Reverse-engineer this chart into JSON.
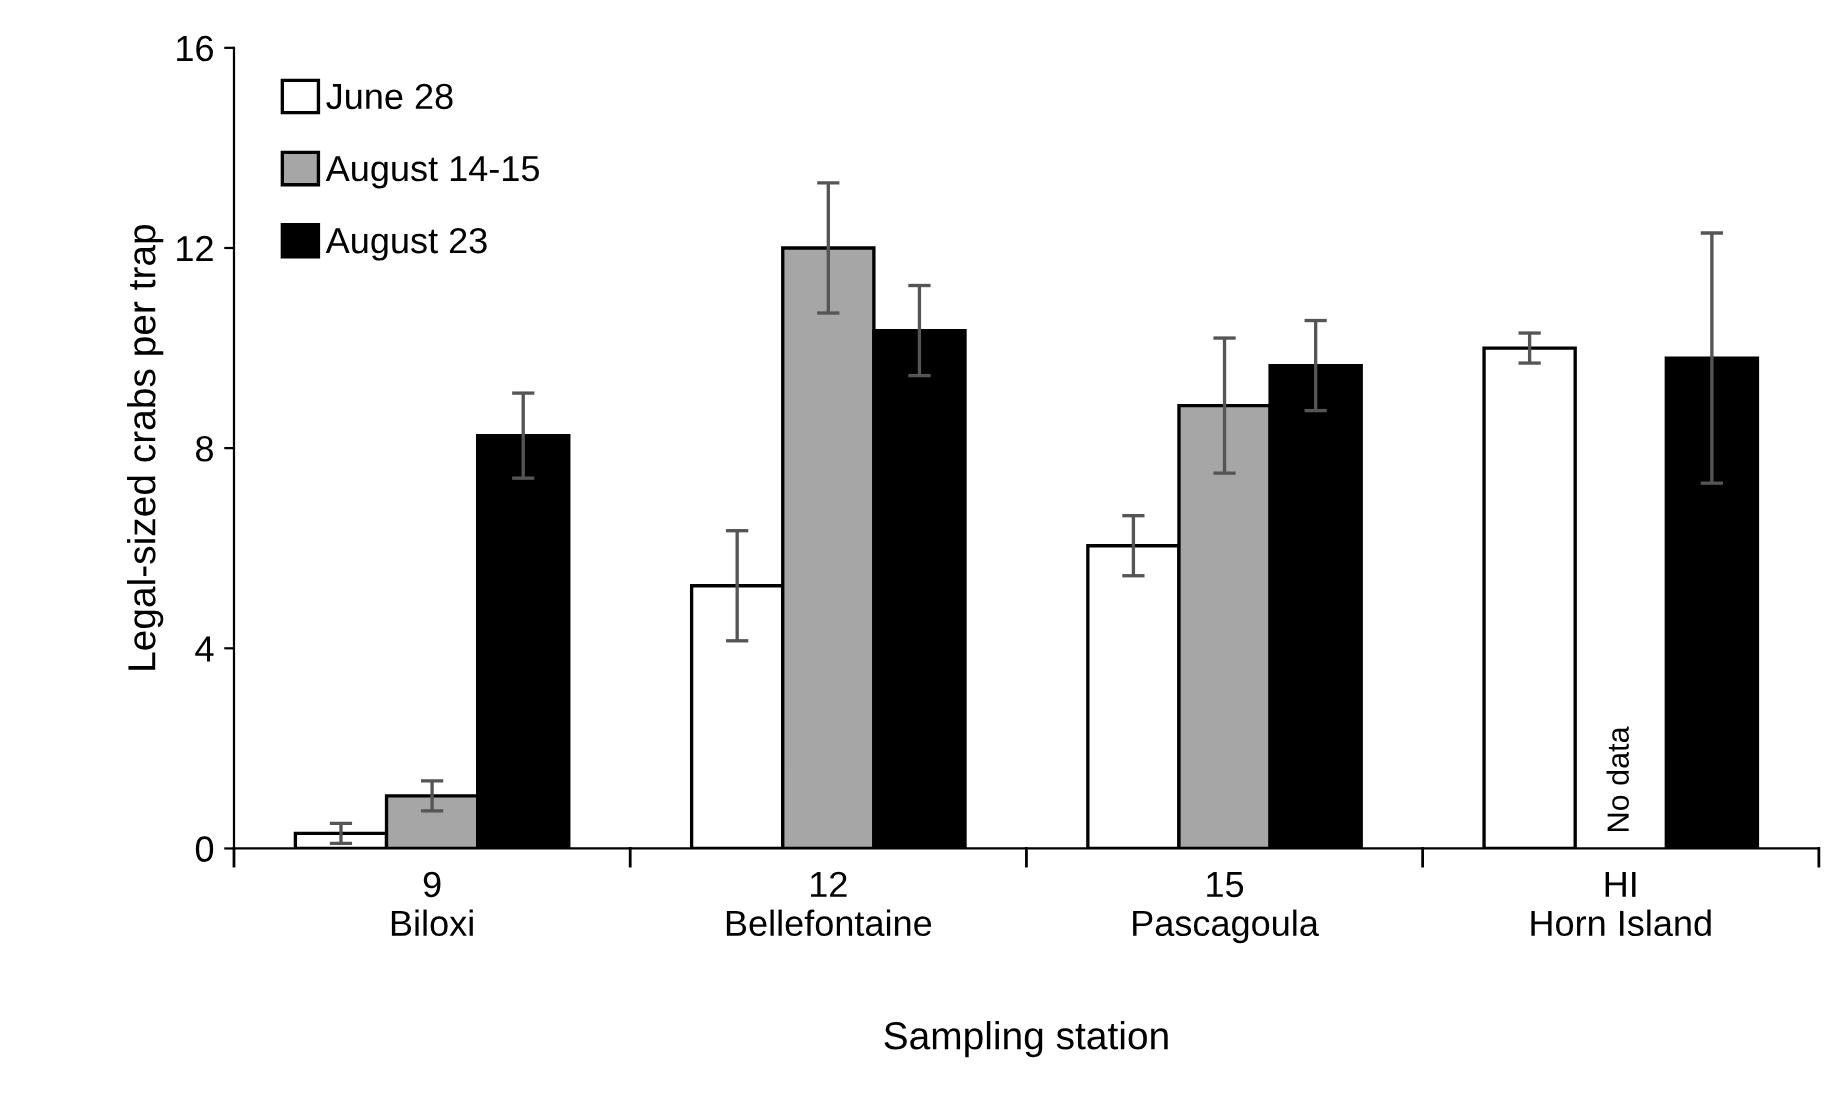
{
  "chart_data": {
    "type": "bar",
    "xlabel": "Sampling station",
    "ylabel": "Legal-sized crabs per trap",
    "categories": [
      "9\nBiloxi",
      "12\nBellefontaine",
      "15\nPascagoula",
      "HI\nHorn Island"
    ],
    "series": [
      {
        "name": "June 28",
        "color": "#ffffff",
        "values": [
          0.3,
          5.25,
          6.05,
          10.0
        ],
        "errors": [
          0.2,
          1.1,
          0.6,
          0.3
        ]
      },
      {
        "name": "August 14-15",
        "color": "#a6a6a6",
        "values": [
          1.05,
          12.0,
          8.85,
          null
        ],
        "errors": [
          0.3,
          1.3,
          1.35,
          null
        ]
      },
      {
        "name": "August 23",
        "color": "#000000",
        "values": [
          8.25,
          10.35,
          9.65,
          9.8
        ],
        "errors": [
          0.85,
          0.9,
          0.9,
          2.5
        ]
      }
    ],
    "annotations": [
      "No data"
    ],
    "ylim": [
      0,
      16
    ],
    "yticks": [
      0,
      4,
      8,
      12,
      16
    ],
    "grid": false,
    "legend": "top left"
  }
}
